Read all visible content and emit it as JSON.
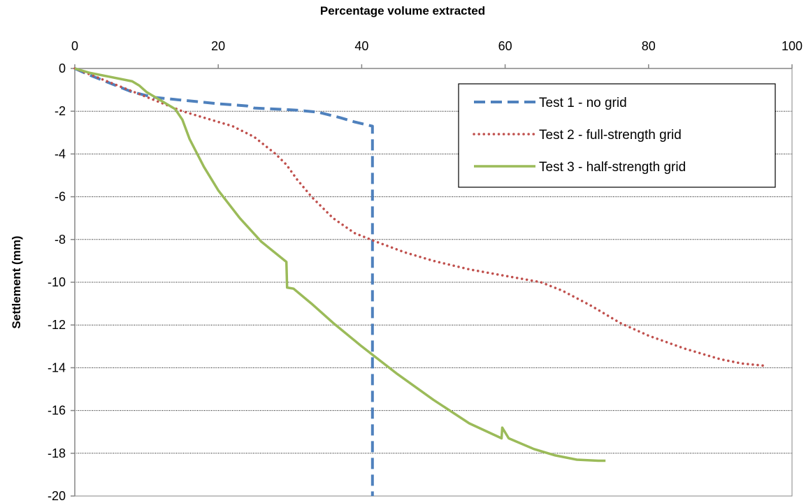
{
  "chart_data": {
    "type": "line",
    "xlabel": "Percentage volume extracted",
    "ylabel": "Settlement (mm)",
    "xlim": [
      0,
      100
    ],
    "ylim": [
      -20,
      0
    ],
    "x_ticks": [
      0,
      20,
      40,
      60,
      80,
      100
    ],
    "y_ticks": [
      0,
      -2,
      -4,
      -6,
      -8,
      -10,
      -12,
      -14,
      -16,
      -18,
      -20
    ],
    "x_axis_position": "top",
    "grid": "horizontal dotted",
    "legend_position": "top-right",
    "series": [
      {
        "name": "Test 1 - no grid",
        "color": "#4F81BD",
        "style": "dashed",
        "x": [
          0,
          2,
          5,
          8,
          11,
          14,
          17,
          20,
          24,
          25,
          28,
          31,
          34,
          37,
          39,
          41.5,
          41.5,
          41.5
        ],
        "y": [
          0,
          -0.3,
          -0.7,
          -1.1,
          -1.35,
          -1.45,
          -1.55,
          -1.65,
          -1.75,
          -1.85,
          -1.9,
          -1.95,
          -2.05,
          -2.3,
          -2.5,
          -2.7,
          -3,
          -20
        ]
      },
      {
        "name": "Test 2 - full-strength grid",
        "color": "#C0504D",
        "style": "dotted",
        "x": [
          0,
          3,
          6,
          9,
          12,
          15,
          18,
          22,
          25,
          28,
          29.5,
          31,
          33,
          36,
          39,
          42,
          46,
          50,
          55,
          60,
          65,
          68,
          72,
          76,
          80,
          85,
          90,
          93,
          96
        ],
        "y": [
          0,
          -0.4,
          -0.8,
          -1.2,
          -1.6,
          -2.0,
          -2.3,
          -2.7,
          -3.2,
          -4.0,
          -4.5,
          -5.2,
          -6.0,
          -7.0,
          -7.7,
          -8.1,
          -8.6,
          -9.0,
          -9.4,
          -9.7,
          -10.0,
          -10.4,
          -11.1,
          -11.9,
          -12.5,
          -13.1,
          -13.6,
          -13.8,
          -13.9
        ]
      },
      {
        "name": "Test 3 - half-strength grid",
        "color": "#9BBB59",
        "style": "solid",
        "x": [
          0,
          2,
          5,
          8,
          9,
          10,
          12,
          14,
          15,
          16,
          18,
          20,
          23,
          26,
          29.5,
          29.6,
          30.5,
          33,
          36,
          40,
          45,
          50,
          55,
          59.5,
          59.6,
          60.5,
          64,
          67,
          70,
          73,
          74
        ],
        "y": [
          0,
          -0.2,
          -0.4,
          -0.6,
          -0.8,
          -1.1,
          -1.5,
          -1.9,
          -2.4,
          -3.3,
          -4.6,
          -5.7,
          -7.0,
          -8.1,
          -9.05,
          -10.25,
          -10.3,
          -11.0,
          -11.9,
          -13.0,
          -14.3,
          -15.5,
          -16.6,
          -17.3,
          -16.8,
          -17.3,
          -17.8,
          -18.1,
          -18.3,
          -18.35,
          -18.35
        ]
      }
    ]
  }
}
